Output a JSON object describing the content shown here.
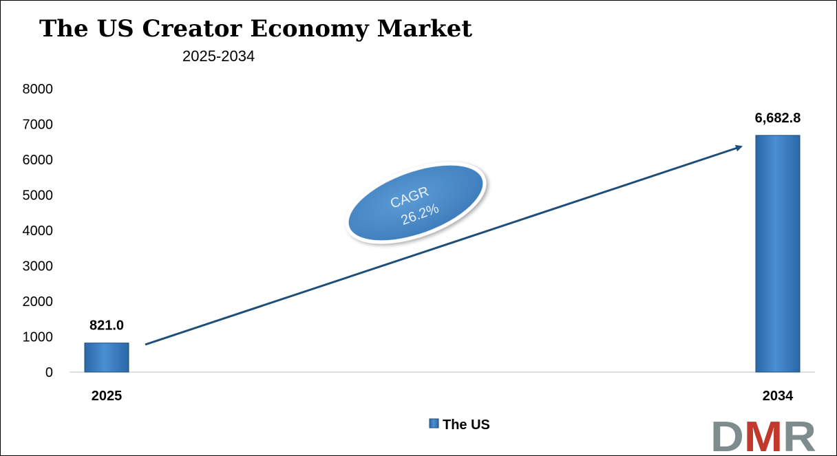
{
  "chart_data": {
    "type": "bar",
    "title": "The US Creator Economy Market",
    "subtitle": "2025-2034",
    "categories": [
      "2025",
      "2034"
    ],
    "series": [
      {
        "name": "The US",
        "values": [
          821.0,
          6682.8
        ],
        "color": "#2e75b6"
      }
    ],
    "data_labels": [
      "821.0",
      "6,682.8"
    ],
    "ylim": [
      0,
      8000
    ],
    "yticks": [
      "0",
      "1000",
      "2000",
      "3000",
      "4000",
      "5000",
      "6000",
      "7000",
      "8000"
    ],
    "grid": false,
    "legend_position": "bottom",
    "annotation": {
      "line1": "CAGR",
      "line2": "26.2%"
    }
  },
  "logo": {
    "text": "DMR",
    "colors": [
      "#7f8c8d",
      "#c0392b"
    ]
  }
}
